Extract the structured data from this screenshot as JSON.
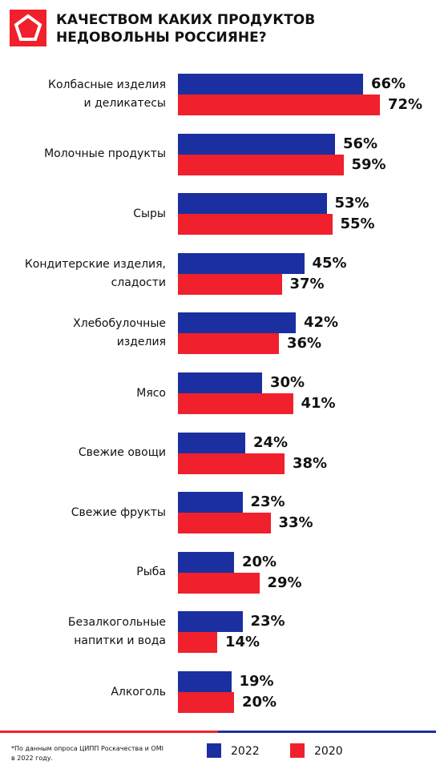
{
  "chart_data": {
    "type": "bar",
    "orientation": "horizontal",
    "title": "КАЧЕСТВОМ КАКИХ ПРОДУКТОВ\nНЕДОВОЛЬНЫ РОССИЯНЕ?",
    "categories": [
      "Колбасные изделия\nи деликатесы",
      "Молочные продукты",
      "Сыры",
      "Кондитерские изделия,\nсладости",
      "Хлебобулочные\nизделия",
      "Мясо",
      "Свежие овощи",
      "Свежие фрукты",
      "Рыба",
      "Безалкогольные\nнапитки и вода",
      "Алкоголь"
    ],
    "series": [
      {
        "name": "2022",
        "color": "#1c2fa0",
        "values": [
          66,
          56,
          53,
          45,
          42,
          30,
          24,
          23,
          20,
          23,
          19
        ],
        "value_labels": [
          "66%",
          "56%",
          "53%",
          "45%",
          "42%",
          "30%",
          "24%",
          "23%",
          "20%",
          "23%",
          "19%"
        ]
      },
      {
        "name": "2020",
        "color": "#f0202c",
        "values": [
          72,
          59,
          55,
          37,
          36,
          41,
          38,
          33,
          29,
          14,
          20
        ],
        "value_labels": [
          "72%",
          "59%",
          "55%",
          "37%",
          "36%",
          "41%",
          "38%",
          "33%",
          "29%",
          "14%",
          "20%"
        ]
      }
    ],
    "legend": "bottom-right",
    "note": "*По данным опроса ЦИПП Роскачества и OMI\nв 2022 году."
  }
}
